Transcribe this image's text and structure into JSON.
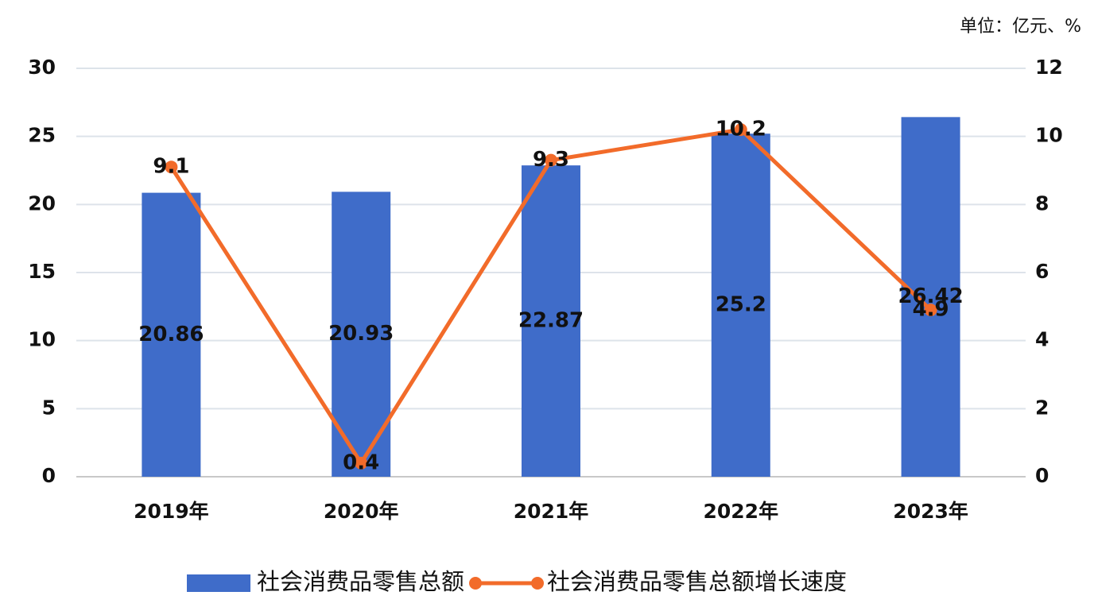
{
  "chart_data": {
    "type": "bar",
    "unit_note": "单位：亿元、%",
    "categories": [
      "2019年",
      "2020年",
      "2021年",
      "2022年",
      "2023年"
    ],
    "series": [
      {
        "name": "社会消费品零售总额",
        "type": "bar",
        "color": "#3f6cc9",
        "values": [
          20.86,
          20.93,
          22.87,
          25.2,
          26.42
        ]
      },
      {
        "name": "社会消费品零售总额增长速度",
        "type": "line",
        "axis": "y2",
        "color": "#f26b2a",
        "values": [
          9.1,
          0.4,
          9.3,
          10.2,
          4.9
        ]
      }
    ],
    "ylim": [
      0,
      30
    ],
    "yticks": [
      0,
      5,
      10,
      15,
      20,
      25,
      30
    ],
    "y2lim": [
      0,
      12
    ],
    "y2ticks": [
      0,
      2,
      4,
      6,
      8,
      10,
      12
    ],
    "grid": true,
    "legend": "bottom"
  }
}
